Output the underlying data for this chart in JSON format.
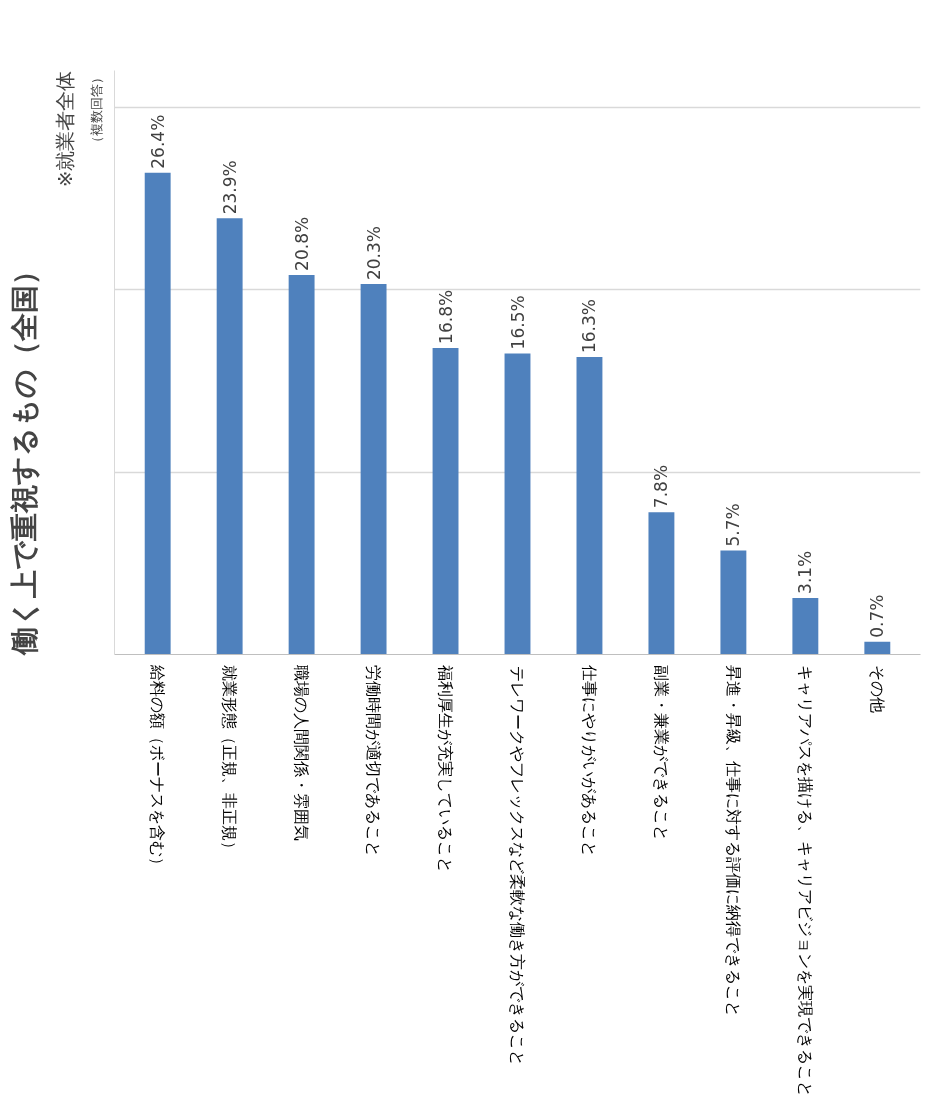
{
  "chart_data": {
    "type": "bar",
    "title": "働く上で重視するもの（全国）",
    "subtitle": "※就業者全体",
    "annotations": [
      "（複数回答）"
    ],
    "categories": [
      "給料の額（ボーナスを含む）",
      "就業形態（正規、非正規）",
      "職場の人間関係・雰囲気",
      "労働時間が適切であること",
      "福利厚生が充実していること",
      "テレワークやフレックスなど柔軟な働き方ができること",
      "仕事にやりがいがあること",
      "副業・兼業ができること",
      "昇進・昇級、仕事に対する評価に納得できること",
      "キャリアパスを描ける、キャリアビジョンを実現できること",
      "その他"
    ],
    "values": [
      26.4,
      23.9,
      20.8,
      20.3,
      16.8,
      16.5,
      16.3,
      7.8,
      5.7,
      3.1,
      0.7
    ],
    "value_labels": [
      "26.4%",
      "23.9%",
      "20.8%",
      "20.3%",
      "16.8%",
      "16.5%",
      "16.3%",
      "7.8%",
      "5.7%",
      "3.1%",
      "0.7%"
    ],
    "color": "#4f81bd",
    "ylim": [
      0,
      32
    ],
    "yticks": [
      {
        "value": 0,
        "label": null
      },
      {
        "value": 10,
        "label": null
      },
      {
        "value": 20,
        "label": null
      },
      {
        "value": 30,
        "label": null
      }
    ],
    "tick_labels": "x",
    "grid": "y"
  }
}
